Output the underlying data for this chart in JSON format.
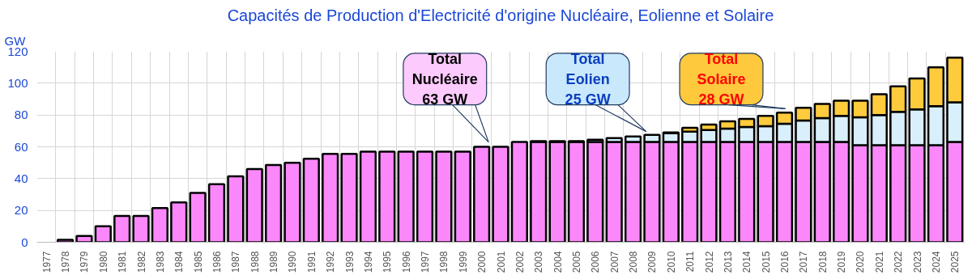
{
  "chart_data": {
    "type": "bar",
    "stacked": true,
    "title": "Capacités de Production d'Electricité d'origine Nucléaire, Eolienne et Solaire",
    "ylabel": "GW",
    "categories": [
      "1977",
      "1978",
      "1979",
      "1980",
      "1981",
      "1982",
      "1983",
      "1984",
      "1985",
      "1986",
      "1987",
      "1988",
      "1989",
      "1990",
      "1991",
      "1992",
      "1993",
      "1994",
      "1995",
      "1996",
      "1997",
      "1998",
      "1999",
      "2000",
      "2001",
      "2002",
      "2003",
      "2004",
      "2005",
      "2006",
      "2007",
      "2008",
      "2009",
      "2010",
      "2011",
      "2012",
      "2013",
      "2014",
      "2015",
      "2016",
      "2017",
      "2018",
      "2019",
      "2020",
      "2021",
      "2022",
      "2023",
      "2024",
      "2025"
    ],
    "series": [
      {
        "color": "#fb88fb",
        "values": [
          0,
          1.5,
          4,
          10,
          16.5,
          16.5,
          21.5,
          25,
          31,
          36.5,
          41.5,
          46,
          48.5,
          50,
          52.5,
          55.5,
          55.5,
          57,
          57,
          57,
          57,
          57,
          57,
          60,
          60,
          63,
          63,
          63,
          63,
          63,
          63,
          63,
          63,
          63,
          63,
          63,
          63,
          63,
          63,
          63,
          63,
          63,
          63,
          61,
          61,
          61,
          61,
          61,
          63
        ]
      },
      {
        "color": "#d9effc",
        "values": [
          null,
          null,
          null,
          null,
          null,
          null,
          null,
          null,
          null,
          null,
          null,
          null,
          null,
          null,
          null,
          null,
          null,
          null,
          null,
          null,
          null,
          null,
          null,
          null,
          null,
          null,
          0.5,
          0.5,
          0.5,
          1.5,
          2.5,
          3.5,
          4.5,
          5.5,
          6.5,
          7.5,
          8.5,
          9.5,
          10,
          11.5,
          13.5,
          15,
          16.5,
          17.5,
          19,
          21,
          22.5,
          24.5,
          25
        ]
      },
      {
        "color": "#fecb3c",
        "values": [
          null,
          null,
          null,
          null,
          null,
          null,
          null,
          null,
          null,
          null,
          null,
          null,
          null,
          null,
          null,
          null,
          null,
          null,
          null,
          null,
          null,
          null,
          null,
          null,
          null,
          null,
          null,
          null,
          null,
          null,
          null,
          null,
          null,
          0.5,
          2.5,
          3.5,
          4.5,
          5,
          6.5,
          7,
          8,
          9,
          9.5,
          10.5,
          13,
          16,
          19.5,
          24.5,
          28
        ]
      }
    ],
    "ylim": [
      0,
      120
    ],
    "yticks": [
      0,
      20,
      40,
      60,
      80,
      100,
      120
    ],
    "grid": true,
    "annotations": [
      "Total\nNucléaire\n63 GW",
      "Total\nEolien\n25 GW",
      "Total\nSolaire\n28 GW"
    ]
  }
}
